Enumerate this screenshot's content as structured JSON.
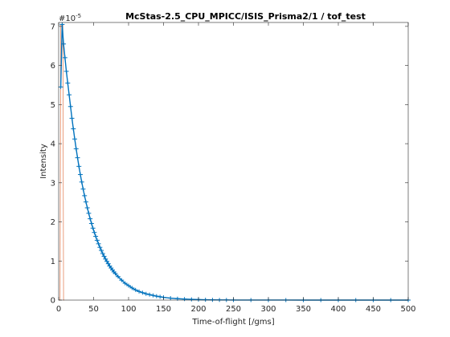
{
  "chart_data": {
    "type": "line",
    "title": "McStas-2.5_CPU_MPICC/ISIS_Prisma2/1 / tof_test",
    "xlabel": "Time-of-flight [/gms]",
    "ylabel": "Intensity",
    "y_exponent_base": "#10",
    "y_exponent_power": "-5",
    "xlim": [
      0,
      500
    ],
    "ylim": [
      0,
      7.1
    ],
    "xticks": [
      0,
      50,
      100,
      150,
      200,
      250,
      300,
      350,
      400,
      450,
      500
    ],
    "yticks": [
      0,
      1,
      2,
      3,
      4,
      5,
      6,
      7
    ],
    "grid": false,
    "series": [
      {
        "color": "#0072bd",
        "style": "errorbar-markers",
        "x": [
          3,
          5,
          7,
          9,
          11,
          13,
          15,
          17,
          19,
          21,
          23,
          25,
          27,
          29,
          31,
          33,
          35,
          37,
          39,
          41,
          43,
          45,
          47,
          49,
          51,
          53,
          55,
          57,
          59,
          61,
          63,
          65,
          67,
          69,
          71,
          73,
          75,
          77,
          79,
          81,
          85,
          90,
          95,
          100,
          105,
          110,
          115,
          120,
          125,
          130,
          135,
          140,
          145,
          150,
          160,
          170,
          180,
          190,
          200,
          210,
          220,
          230,
          240,
          250,
          275,
          300,
          325,
          350,
          375,
          400,
          425,
          450,
          475,
          500
        ],
        "y": [
          5.45,
          7.05,
          6.55,
          6.2,
          5.85,
          5.55,
          5.25,
          4.95,
          4.65,
          4.38,
          4.12,
          3.87,
          3.64,
          3.42,
          3.21,
          3.02,
          2.84,
          2.67,
          2.51,
          2.36,
          2.22,
          2.08,
          1.96,
          1.84,
          1.73,
          1.63,
          1.53,
          1.44,
          1.35,
          1.27,
          1.19,
          1.12,
          1.05,
          0.99,
          0.93,
          0.87,
          0.82,
          0.77,
          0.72,
          0.68,
          0.6,
          0.51,
          0.43,
          0.37,
          0.31,
          0.26,
          0.22,
          0.19,
          0.16,
          0.14,
          0.12,
          0.1,
          0.085,
          0.07,
          0.05,
          0.036,
          0.026,
          0.018,
          0.013,
          0.009,
          0.006,
          0.004,
          0.003,
          0.002,
          0.001,
          0.0005,
          0.0003,
          0.0002,
          0.0001,
          0.0001,
          0,
          0,
          0,
          0
        ]
      },
      {
        "color": "#d95319",
        "style": "thin-line",
        "x": [
          0,
          2,
          3,
          4,
          5,
          6,
          7,
          8
        ],
        "y": [
          0,
          0,
          7.05,
          7.05,
          7.05,
          7.05,
          0,
          0
        ]
      }
    ],
    "colors": {
      "axis": "#262626",
      "series1": "#0072bd",
      "series2": "#d95319"
    }
  }
}
